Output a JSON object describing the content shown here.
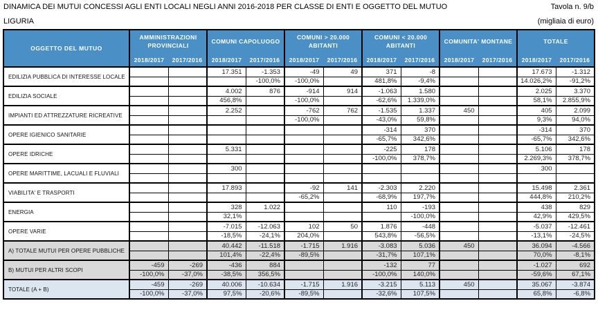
{
  "header": {
    "title": "DINAMICA DEI MUTUI CONCESSI AGLI ENTI LOCALI NEGLI ANNI  2016-2018 PER CLASSE DI ENTI E OGGETTO DEL MUTUO",
    "tavola": "Tavola n. 9/b",
    "region": "LIGURIA",
    "unit": "(migliaia di euro)"
  },
  "table": {
    "corner_label": "OGGETTO DEL MUTUO",
    "groups": [
      {
        "label": "AMMINISTRAZIONI PROVINCIALI"
      },
      {
        "label": "COMUNI CAPOLUOGO"
      },
      {
        "label": "COMUNI > 20.000 ABITANTI"
      },
      {
        "label": "COMUNI < 20.000 ABITANTI"
      },
      {
        "label": "COMUNITA' MONTANE"
      },
      {
        "label": "TOTALE"
      }
    ],
    "years": [
      "2018/2017",
      "2017/2016"
    ],
    "colors": {
      "header_bg": "#4a8fc6",
      "gray_row": "#d9d9d9",
      "blue_row": "#dce6f1"
    },
    "rows": [
      {
        "label": "EDILIZIA PUBBLICA DI INTERESSE LOCALE",
        "style": "normal",
        "values": [
          "",
          "",
          "17.351",
          "-1.353",
          "-49",
          "49",
          "371",
          "-8",
          "",
          "",
          "17.673",
          "-1.312"
        ],
        "pcts": [
          "",
          "",
          "",
          "-100,0%",
          "-100,0%",
          "",
          "481,8%",
          "-9,4%",
          "",
          "",
          "14.026,2%",
          "-91,2%"
        ]
      },
      {
        "label": "EDILIZIA SOCIALE",
        "style": "normal",
        "values": [
          "",
          "",
          "4.002",
          "876",
          "-914",
          "914",
          "-1.063",
          "1.580",
          "",
          "",
          "2.025",
          "3.370"
        ],
        "pcts": [
          "",
          "",
          "456,8%",
          "",
          "-100,0%",
          "",
          "-62,6%",
          "1.339,0%",
          "",
          "",
          "58,1%",
          "2.855,9%"
        ]
      },
      {
        "label": "IMPIANTI ED ATTREZZATURE RICREATIVE",
        "style": "normal",
        "values": [
          "",
          "",
          "2.252",
          "",
          "-762",
          "762",
          "-1.535",
          "1.337",
          "450",
          "",
          "405",
          "2.099"
        ],
        "pcts": [
          "",
          "",
          "",
          "",
          "-100,0%",
          "",
          "-43,0%",
          "59,8%",
          "",
          "",
          "9,3%",
          "94,0%"
        ]
      },
      {
        "label": "OPERE IGIENICO SANITARIE",
        "style": "normal",
        "values": [
          "",
          "",
          "",
          "",
          "",
          "",
          "-314",
          "370",
          "",
          "",
          "-314",
          "370"
        ],
        "pcts": [
          "",
          "",
          "",
          "",
          "",
          "",
          "-65,7%",
          "342,6%",
          "",
          "",
          "-65,7%",
          "342,6%"
        ]
      },
      {
        "label": "OPERE IDRICHE",
        "style": "normal",
        "values": [
          "",
          "",
          "5.331",
          "",
          "",
          "",
          "-225",
          "178",
          "",
          "",
          "5.106",
          "178"
        ],
        "pcts": [
          "",
          "",
          "",
          "",
          "",
          "",
          "-100,0%",
          "378,7%",
          "",
          "",
          "2.269,3%",
          "378,7%"
        ]
      },
      {
        "label": "OPERE MARITTIME, LACUALI  E FLUVIALI",
        "style": "normal",
        "values": [
          "",
          "",
          "300",
          "",
          "",
          "",
          "",
          "",
          "",
          "",
          "300",
          ""
        ],
        "pcts": [
          "",
          "",
          "",
          "",
          "",
          "",
          "",
          "",
          "",
          "",
          "",
          ""
        ]
      },
      {
        "label": "VIABILITA' E TRASPORTI",
        "style": "normal",
        "values": [
          "",
          "",
          "17.893",
          "",
          "-92",
          "141",
          "-2.303",
          "2.220",
          "",
          "",
          "15.498",
          "2.361"
        ],
        "pcts": [
          "",
          "",
          "",
          "",
          "-65,2%",
          "",
          "-68,9%",
          "197,7%",
          "",
          "",
          "444,8%",
          "210,2%"
        ]
      },
      {
        "label": "ENERGIA",
        "style": "normal",
        "values": [
          "",
          "",
          "328",
          "1.022",
          "",
          "",
          "110",
          "-193",
          "",
          "",
          "438",
          "829"
        ],
        "pcts": [
          "",
          "",
          "32,1%",
          "",
          "",
          "",
          "",
          "-100,0%",
          "",
          "",
          "42,9%",
          "429,5%"
        ]
      },
      {
        "label": "OPERE VARIE",
        "style": "normal",
        "values": [
          "",
          "",
          "-7.015",
          "-12.063",
          "102",
          "50",
          "1.876",
          "-448",
          "",
          "",
          "-5.037",
          "-12.461"
        ],
        "pcts": [
          "",
          "",
          "-18,5%",
          "-24,1%",
          "204,0%",
          "",
          "543,8%",
          "-56,5%",
          "",
          "",
          "-13,1%",
          "-24,5%"
        ]
      },
      {
        "label": "A) TOTALE MUTUI PER OPERE PUBBLICHE",
        "style": "gray",
        "values": [
          "",
          "",
          "40.442",
          "-11.518",
          "-1.715",
          "1.916",
          "-3.083",
          "5.036",
          "450",
          "",
          "36.094",
          "-4.566"
        ],
        "pcts": [
          "",
          "",
          "101,4%",
          "-22,4%",
          "-89,5%",
          "",
          "-31,7%",
          "107,1%",
          "",
          "",
          "70,0%",
          "-8,1%"
        ]
      },
      {
        "label": "B) MUTUI PER ALTRI SCOPI",
        "style": "gray",
        "values": [
          "-459",
          "-269",
          "-436",
          "884",
          "",
          "",
          "-132",
          "77",
          "",
          "",
          "-1.027",
          "692"
        ],
        "pcts": [
          "-100,0%",
          "-37,0%",
          "-38,5%",
          "356,5%",
          "",
          "",
          "-100,0%",
          "140,0%",
          "",
          "",
          "-59,6%",
          "67,1%"
        ]
      },
      {
        "label": "TOTALE (A + B)",
        "style": "blue",
        "values": [
          "-459",
          "-269",
          "40.006",
          "-10.634",
          "-1.715",
          "1.916",
          "-3.215",
          "5.113",
          "450",
          "",
          "35.067",
          "-3.874"
        ],
        "pcts": [
          "-100,0%",
          "-37,0%",
          "97,5%",
          "-20,6%",
          "-89,5%",
          "",
          "-32,6%",
          "107,5%",
          "",
          "",
          "65,8%",
          "-6,8%"
        ]
      }
    ]
  }
}
